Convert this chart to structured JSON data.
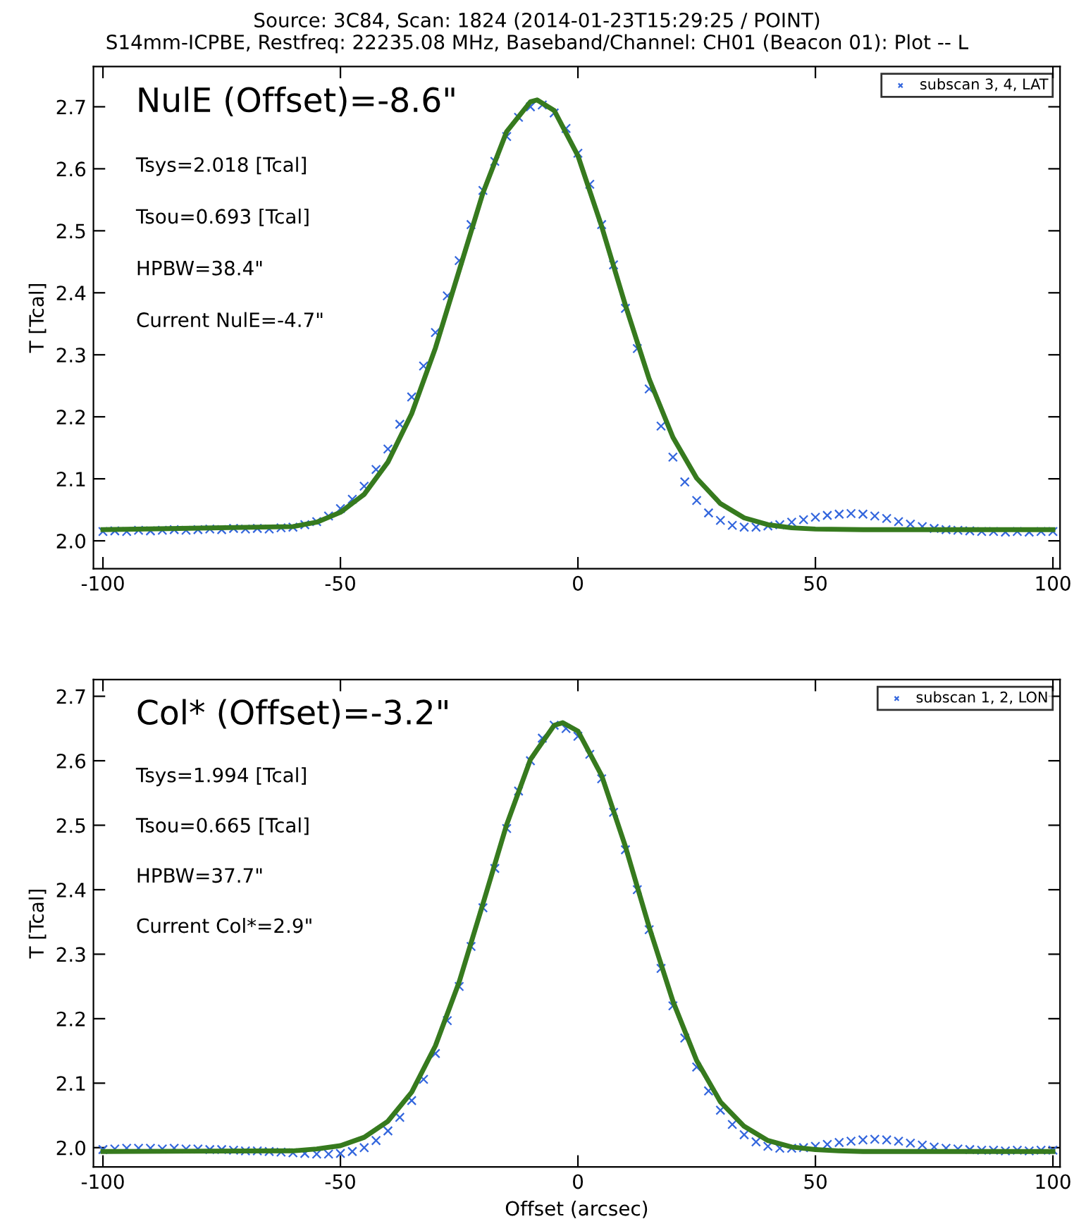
{
  "chart_data": [
    {
      "type": "scatter",
      "title": "Source: 3C84, Scan: 1824 (2014-01-23T15:29:25 / POINT)\nS14mm-ICPBE, Restfreq: 22235.08 MHz, Baseband/Channel: CH01 (Beacon 01): Plot -- L",
      "ylabel": "T [Tcal]",
      "annotations": [
        "NulE (Offset)=-8.6\"",
        "Tsys=2.018 [Tcal]",
        "Tsou=0.693 [Tcal]",
        "HPBW=38.4\"",
        "Current NulE=-4.7\""
      ],
      "series": [
        {
          "name": "subscan 3, 4, LAT",
          "marker": "cross",
          "color": "#3366dd",
          "x": [
            -100,
            -97.5,
            -95,
            -92.5,
            -90,
            -87.5,
            -85,
            -82.5,
            -80,
            -77.5,
            -75,
            -72.5,
            -70,
            -67.5,
            -65,
            -62.5,
            -60,
            -57.5,
            -55,
            -52.5,
            -50,
            -47.5,
            -45,
            -42.5,
            -40,
            -37.5,
            -35,
            -32.5,
            -30,
            -27.5,
            -25,
            -22.5,
            -20,
            -17.5,
            -15,
            -12.5,
            -10,
            -7.5,
            -5,
            -2.5,
            0,
            2.5,
            5,
            7.5,
            10,
            12.5,
            15,
            17.5,
            20,
            22.5,
            25,
            27.5,
            30,
            32.5,
            35,
            37.5,
            40,
            42.5,
            45,
            47.5,
            50,
            52.5,
            55,
            57.5,
            60,
            62.5,
            65,
            67.5,
            70,
            72.5,
            75,
            77.5,
            80,
            82.5,
            85,
            87.5,
            90,
            92.5,
            95,
            97.5,
            100
          ],
          "values": [
            2.015,
            2.016,
            2.015,
            2.017,
            2.016,
            2.017,
            2.018,
            2.017,
            2.018,
            2.019,
            2.018,
            2.02,
            2.019,
            2.02,
            2.019,
            2.021,
            2.022,
            2.026,
            2.031,
            2.04,
            2.052,
            2.067,
            2.088,
            2.115,
            2.148,
            2.188,
            2.232,
            2.282,
            2.336,
            2.395,
            2.452,
            2.51,
            2.565,
            2.612,
            2.652,
            2.683,
            2.7,
            2.703,
            2.69,
            2.665,
            2.625,
            2.575,
            2.51,
            2.445,
            2.375,
            2.31,
            2.245,
            2.185,
            2.135,
            2.095,
            2.065,
            2.045,
            2.033,
            2.025,
            2.022,
            2.022,
            2.024,
            2.026,
            2.03,
            2.034,
            2.038,
            2.041,
            2.043,
            2.044,
            2.043,
            2.04,
            2.036,
            2.031,
            2.027,
            2.023,
            2.02,
            2.018,
            2.017,
            2.016,
            2.015,
            2.015,
            2.014,
            2.015,
            2.014,
            2.015,
            2.015
          ]
        },
        {
          "type": "line",
          "color": "#367a1e",
          "marker": "none",
          "x": [
            -100,
            -60,
            -55,
            -50,
            -45,
            -40,
            -35,
            -30,
            -25,
            -20,
            -15,
            -10,
            -8.6,
            -5,
            0,
            5,
            10,
            15,
            20,
            25,
            30,
            35,
            40,
            45,
            50,
            60,
            100
          ],
          "values": [
            2.018,
            2.023,
            2.03,
            2.046,
            2.075,
            2.127,
            2.205,
            2.311,
            2.436,
            2.561,
            2.66,
            2.708,
            2.711,
            2.694,
            2.621,
            2.507,
            2.38,
            2.261,
            2.167,
            2.101,
            2.06,
            2.037,
            2.026,
            2.021,
            2.019,
            2.018,
            2.018
          ]
        }
      ],
      "xlim": [
        -102,
        101.5
      ],
      "ylim": [
        1.955,
        2.765
      ],
      "xticks": [
        -100,
        -50,
        0,
        50,
        100
      ],
      "yticks": [
        {
          "value": 2.0,
          "label": "2.0"
        },
        2.1,
        2.2,
        2.3,
        2.4,
        2.5,
        2.6,
        2.7
      ],
      "grid": false,
      "legend": "top right"
    },
    {
      "type": "scatter",
      "xlabel": "Offset (arcsec)",
      "ylabel": "T [Tcal]",
      "annotations": [
        "Col* (Offset)=-3.2\"",
        "Tsys=1.994 [Tcal]",
        "Tsou=0.665 [Tcal]",
        "HPBW=37.7\"",
        "Current Col*=2.9\""
      ],
      "series": [
        {
          "name": "subscan 1, 2, LON",
          "marker": "cross",
          "color": "#3366dd",
          "x": [
            -100,
            -97.5,
            -95,
            -92.5,
            -90,
            -87.5,
            -85,
            -82.5,
            -80,
            -77.5,
            -75,
            -72.5,
            -70,
            -67.5,
            -65,
            -62.5,
            -60,
            -57.5,
            -55,
            -52.5,
            -50,
            -47.5,
            -45,
            -42.5,
            -40,
            -37.5,
            -35,
            -32.5,
            -30,
            -27.5,
            -25,
            -22.5,
            -20,
            -17.5,
            -15,
            -12.5,
            -10,
            -7.5,
            -5,
            -2.5,
            0,
            2.5,
            5,
            7.5,
            10,
            12.5,
            15,
            17.5,
            20,
            22.5,
            25,
            27.5,
            30,
            32.5,
            35,
            37.5,
            40,
            42.5,
            45,
            47.5,
            50,
            52.5,
            55,
            57.5,
            60,
            62.5,
            65,
            67.5,
            70,
            72.5,
            75,
            77.5,
            80,
            82.5,
            85,
            87.5,
            90,
            92.5,
            95,
            97.5,
            100
          ],
          "values": [
            1.997,
            1.998,
            1.999,
            1.999,
            1.999,
            1.998,
            1.999,
            1.998,
            1.998,
            1.997,
            1.997,
            1.996,
            1.995,
            1.995,
            1.994,
            1.993,
            1.992,
            1.991,
            1.99,
            1.99,
            1.991,
            1.994,
            2.0,
            2.011,
            2.026,
            2.047,
            2.073,
            2.106,
            2.146,
            2.197,
            2.25,
            2.312,
            2.372,
            2.433,
            2.495,
            2.553,
            2.6,
            2.635,
            2.655,
            2.65,
            2.638,
            2.61,
            2.572,
            2.52,
            2.462,
            2.4,
            2.338,
            2.278,
            2.22,
            2.17,
            2.125,
            2.088,
            2.058,
            2.036,
            2.02,
            2.009,
            2.002,
            1.999,
            1.999,
            2.0,
            2.002,
            2.005,
            2.008,
            2.01,
            2.012,
            2.013,
            2.012,
            2.01,
            2.007,
            2.004,
            2.001,
            1.999,
            1.998,
            1.997,
            1.996,
            1.996,
            1.995,
            1.996,
            1.995,
            1.996,
            1.996
          ]
        },
        {
          "type": "line",
          "color": "#367a1e",
          "marker": "none",
          "x": [
            -100,
            -60,
            -55,
            -50,
            -45,
            -40,
            -35,
            -30,
            -25,
            -20,
            -15,
            -10,
            -5,
            -3.2,
            0,
            5,
            10,
            15,
            20,
            25,
            30,
            35,
            40,
            45,
            50,
            55,
            60,
            100
          ],
          "values": [
            1.994,
            1.995,
            1.998,
            2.003,
            2.016,
            2.041,
            2.086,
            2.158,
            2.257,
            2.378,
            2.501,
            2.602,
            2.655,
            2.659,
            2.646,
            2.577,
            2.467,
            2.342,
            2.227,
            2.135,
            2.071,
            2.033,
            2.011,
            2.001,
            1.997,
            1.995,
            1.994,
            1.994
          ]
        }
      ],
      "xlim": [
        -102,
        101.5
      ],
      "ylim": [
        1.97,
        2.726
      ],
      "xticks": [
        -100,
        -50,
        0,
        50,
        100
      ],
      "yticks": [
        {
          "value": 2.0,
          "label": "2.0"
        },
        2.1,
        2.2,
        2.3,
        2.4,
        2.5,
        2.6,
        2.7
      ],
      "grid": false,
      "legend": "top right"
    }
  ]
}
